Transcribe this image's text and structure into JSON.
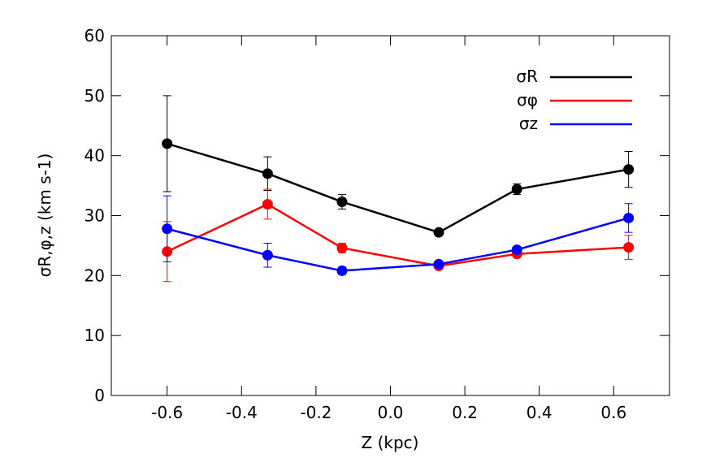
{
  "chart_data": {
    "type": "line",
    "x_label": "Z (kpc)",
    "y_label": "σR,φ,z (km s-1)",
    "x": [
      -0.6,
      -0.33,
      -0.13,
      0.13,
      0.34,
      0.64
    ],
    "series": [
      {
        "name": "σR",
        "color": "#000000",
        "values": [
          42,
          37,
          32.3,
          27.2,
          34.4,
          37.7
        ],
        "errors": [
          8,
          2.8,
          1.2,
          0.3,
          0.9,
          3
        ]
      },
      {
        "name": "σφ",
        "color": "#ff0000",
        "values": [
          24,
          31.9,
          24.6,
          21.6,
          23.6,
          24.7
        ],
        "errors": [
          5,
          2.5,
          0.8,
          0.3,
          0.3,
          2
        ]
      },
      {
        "name": "σz",
        "color": "#0000ff",
        "values": [
          27.8,
          23.4,
          20.8,
          21.9,
          24.3,
          29.6
        ],
        "errors": [
          5.5,
          2,
          0.6,
          0.3,
          0.3,
          2.4
        ]
      }
    ],
    "xlim": [
      -0.75,
      0.75
    ],
    "ylim": [
      0,
      60
    ],
    "xticks": [
      -0.6,
      -0.4,
      -0.2,
      {
        "value": 0,
        "label": "0.0"
      },
      0.2,
      0.4,
      0.6
    ],
    "yticks": [
      0,
      10,
      20,
      30,
      40,
      50,
      60
    ],
    "legend": "upper right"
  }
}
